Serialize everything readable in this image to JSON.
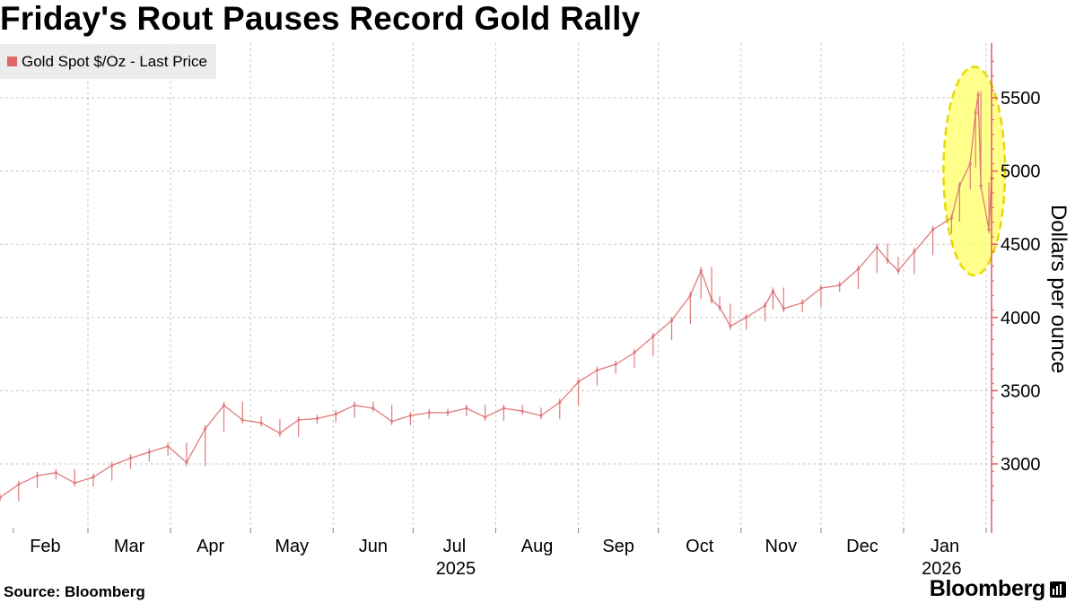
{
  "title": "Friday's Rout Pauses Record Gold Rally",
  "legend": {
    "label": "Gold Spot $/Oz - Last Price",
    "color": "#e06666"
  },
  "footer": {
    "source": "Source: Bloomberg",
    "brand": "Bloomberg",
    "brand_icon": "bloomberg-bars-icon"
  },
  "colors": {
    "series": "#e07b7b",
    "axis": "#e05a5a",
    "highlight_fill": "#ffff66",
    "highlight_stroke": "#e8d800",
    "grid": "#c8c8c8"
  },
  "chart_data": {
    "type": "line",
    "series": [
      {
        "name": "Gold Spot $/Oz - Last Price",
        "x": [
          "2025-01-27",
          "2025-02-03",
          "2025-02-10",
          "2025-02-17",
          "2025-02-24",
          "2025-03-03",
          "2025-03-10",
          "2025-03-17",
          "2025-03-24",
          "2025-03-31",
          "2025-04-07",
          "2025-04-14",
          "2025-04-21",
          "2025-04-28",
          "2025-05-05",
          "2025-05-12",
          "2025-05-19",
          "2025-05-26",
          "2025-06-02",
          "2025-06-09",
          "2025-06-16",
          "2025-06-23",
          "2025-06-30",
          "2025-07-07",
          "2025-07-14",
          "2025-07-21",
          "2025-07-28",
          "2025-08-04",
          "2025-08-11",
          "2025-08-18",
          "2025-08-25",
          "2025-09-01",
          "2025-09-08",
          "2025-09-15",
          "2025-09-22",
          "2025-09-29",
          "2025-10-06",
          "2025-10-13",
          "2025-10-17",
          "2025-10-21",
          "2025-10-24",
          "2025-10-28",
          "2025-11-03",
          "2025-11-10",
          "2025-11-13",
          "2025-11-17",
          "2025-11-24",
          "2025-12-01",
          "2025-12-08",
          "2025-12-15",
          "2025-12-22",
          "2025-12-26",
          "2025-12-30",
          "2026-01-05",
          "2026-01-12",
          "2026-01-19",
          "2026-01-22",
          "2026-01-26",
          "2026-01-28",
          "2026-01-29",
          "2026-01-30",
          "2026-02-02",
          "2026-02-03"
        ],
        "values": [
          2770,
          2860,
          2920,
          2940,
          2870,
          2910,
          2990,
          3040,
          3080,
          3120,
          3010,
          3240,
          3400,
          3300,
          3280,
          3210,
          3300,
          3310,
          3340,
          3400,
          3380,
          3290,
          3330,
          3350,
          3350,
          3380,
          3320,
          3380,
          3360,
          3330,
          3420,
          3560,
          3640,
          3680,
          3760,
          3870,
          3980,
          4150,
          4320,
          4120,
          4070,
          3940,
          4000,
          4080,
          4180,
          4060,
          4100,
          4200,
          4220,
          4330,
          4480,
          4390,
          4320,
          4450,
          4600,
          4680,
          4900,
          5050,
          5400,
          5520,
          4900,
          4600,
          4950
        ]
      }
    ],
    "x_ticks": [
      "Feb",
      "Mar",
      "Apr",
      "May",
      "Jun",
      "Jul",
      "Aug",
      "Sep",
      "Oct",
      "Nov",
      "Dec",
      "Jan"
    ],
    "x_year_labels": [
      "2025",
      "2026"
    ],
    "y_ticks": [
      3000,
      3500,
      4000,
      4500,
      5000,
      5500
    ],
    "ylim": [
      2600,
      5850
    ],
    "xlim": [
      "2025-01-27",
      "2026-02-03"
    ],
    "ylabel": "Dollars per ounce",
    "xlabel": "",
    "grid": true,
    "legend_position": "top-left",
    "annotations": [
      {
        "type": "ellipse-highlight",
        "x_range": [
          "2026-01-19",
          "2026-02-03"
        ],
        "y_range": [
          4300,
          5700
        ]
      }
    ]
  }
}
